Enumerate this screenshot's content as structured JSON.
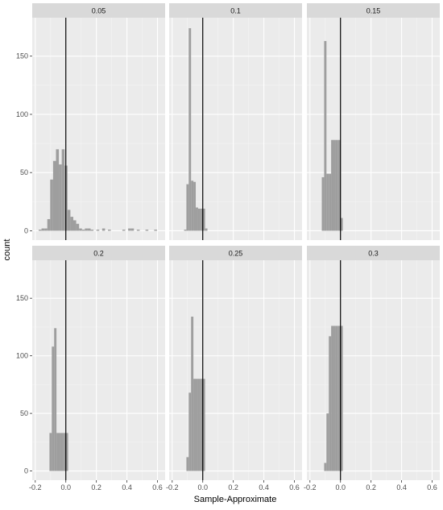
{
  "chart_data": {
    "type": "bar",
    "subtype": "faceted-histogram",
    "xlabel": "Sample-Approximate",
    "ylabel": "count",
    "xlim": [
      -0.22,
      0.65
    ],
    "ylim": [
      -8,
      183
    ],
    "x_ticks": [
      -0.2,
      0.0,
      0.2,
      0.4,
      0.6
    ],
    "x_tick_labels": [
      "-0.2",
      "0.0",
      "0.2",
      "0.4",
      "0.6"
    ],
    "y_ticks": [
      0,
      50,
      100,
      150
    ],
    "y_tick_labels": [
      "0",
      "50",
      "100",
      "150"
    ],
    "reference_line_x": 0,
    "grid": true,
    "facet_layout": "2 rows x 3 columns",
    "panel_background": "#ebebeb",
    "strip_background": "#d9d9d9",
    "bar_color": "#9e9e9e",
    "vline_color": "#000000",
    "facets": [
      {
        "label": "0.05",
        "bin_width": 0.0189,
        "bins": [
          {
            "x0": -0.1779,
            "count": 1
          },
          {
            "x0": -0.159,
            "count": 2
          },
          {
            "x0": -0.1401,
            "count": 2
          },
          {
            "x0": -0.1212,
            "count": 10
          },
          {
            "x0": -0.1023,
            "count": 44
          },
          {
            "x0": -0.0834,
            "count": 60
          },
          {
            "x0": -0.0645,
            "count": 70
          },
          {
            "x0": -0.0456,
            "count": 57
          },
          {
            "x0": -0.0267,
            "count": 70
          },
          {
            "x0": -0.0078,
            "count": 56
          },
          {
            "x0": 0.0111,
            "count": 18
          },
          {
            "x0": 0.03,
            "count": 12
          },
          {
            "x0": 0.0489,
            "count": 9
          },
          {
            "x0": 0.0678,
            "count": 6
          },
          {
            "x0": 0.0867,
            "count": 2
          },
          {
            "x0": 0.1056,
            "count": 1
          },
          {
            "x0": 0.1245,
            "count": 2
          },
          {
            "x0": 0.1434,
            "count": 2
          },
          {
            "x0": 0.1623,
            "count": 1
          },
          {
            "x0": 0.1812,
            "count": 0
          },
          {
            "x0": 0.2001,
            "count": 1
          },
          {
            "x0": 0.219,
            "count": 0
          },
          {
            "x0": 0.2379,
            "count": 2
          },
          {
            "x0": 0.2568,
            "count": 0
          },
          {
            "x0": 0.2757,
            "count": 1
          },
          {
            "x0": 0.2946,
            "count": 0
          },
          {
            "x0": 0.3135,
            "count": 0
          },
          {
            "x0": 0.3324,
            "count": 0
          },
          {
            "x0": 0.3513,
            "count": 0
          },
          {
            "x0": 0.3702,
            "count": 1
          },
          {
            "x0": 0.3891,
            "count": 0
          },
          {
            "x0": 0.408,
            "count": 2
          },
          {
            "x0": 0.4269,
            "count": 2
          },
          {
            "x0": 0.4458,
            "count": 0
          },
          {
            "x0": 0.4647,
            "count": 1
          },
          {
            "x0": 0.4836,
            "count": 0
          },
          {
            "x0": 0.5025,
            "count": 0
          },
          {
            "x0": 0.5214,
            "count": 1
          },
          {
            "x0": 0.5403,
            "count": 0
          },
          {
            "x0": 0.5592,
            "count": 0
          },
          {
            "x0": 0.5781,
            "count": 1
          }
        ]
      },
      {
        "label": "0.1",
        "bin_width": 0.0153,
        "bins": [
          {
            "x0": -0.1224,
            "count": 1
          },
          {
            "x0": -0.1071,
            "count": 40
          },
          {
            "x0": -0.0918,
            "count": 174
          },
          {
            "x0": -0.0765,
            "count": 43
          },
          {
            "x0": -0.0612,
            "count": 42
          },
          {
            "x0": -0.0459,
            "count": 20
          },
          {
            "x0": -0.0306,
            "count": 19
          },
          {
            "x0": -0.0153,
            "count": 19
          },
          {
            "x0": 0.0,
            "count": 19
          },
          {
            "x0": 0.0153,
            "count": 2
          }
        ]
      },
      {
        "label": "0.15",
        "bin_width": 0.0153,
        "bins": [
          {
            "x0": -0.1224,
            "count": 46
          },
          {
            "x0": -0.1071,
            "count": 163
          },
          {
            "x0": -0.0918,
            "count": 49
          },
          {
            "x0": -0.0765,
            "count": 49
          },
          {
            "x0": -0.0612,
            "count": 78
          },
          {
            "x0": -0.0459,
            "count": 78
          },
          {
            "x0": -0.0306,
            "count": 78
          },
          {
            "x0": -0.0153,
            "count": 78
          },
          {
            "x0": 0.0,
            "count": 11
          }
        ]
      },
      {
        "label": "0.2",
        "bin_width": 0.0153,
        "bins": [
          {
            "x0": -0.1071,
            "count": 33
          },
          {
            "x0": -0.0918,
            "count": 108
          },
          {
            "x0": -0.0765,
            "count": 124
          },
          {
            "x0": -0.0612,
            "count": 33
          },
          {
            "x0": -0.0459,
            "count": 33
          },
          {
            "x0": -0.0306,
            "count": 33
          },
          {
            "x0": -0.0153,
            "count": 33
          },
          {
            "x0": 0.0,
            "count": 33
          }
        ]
      },
      {
        "label": "0.25",
        "bin_width": 0.0153,
        "bins": [
          {
            "x0": -0.1071,
            "count": 12
          },
          {
            "x0": -0.0918,
            "count": 68
          },
          {
            "x0": -0.0765,
            "count": 134
          },
          {
            "x0": -0.0612,
            "count": 80
          },
          {
            "x0": -0.0459,
            "count": 80
          },
          {
            "x0": -0.0306,
            "count": 80
          },
          {
            "x0": -0.0153,
            "count": 80
          },
          {
            "x0": 0.0,
            "count": 80
          }
        ]
      },
      {
        "label": "0.3",
        "bin_width": 0.0153,
        "bins": [
          {
            "x0": -0.1071,
            "count": 7
          },
          {
            "x0": -0.0918,
            "count": 50
          },
          {
            "x0": -0.0765,
            "count": 117
          },
          {
            "x0": -0.0612,
            "count": 126
          },
          {
            "x0": -0.0459,
            "count": 126
          },
          {
            "x0": -0.0306,
            "count": 126
          },
          {
            "x0": -0.0153,
            "count": 126
          },
          {
            "x0": 0.0,
            "count": 126
          }
        ]
      }
    ]
  }
}
